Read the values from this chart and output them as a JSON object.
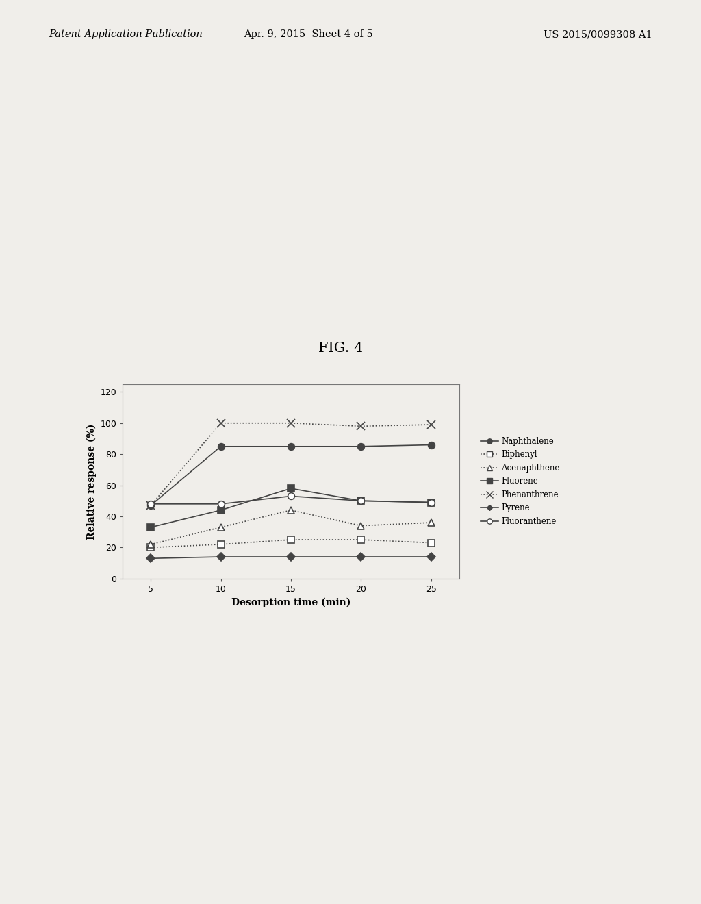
{
  "title": "FIG. 4",
  "xlabel": "Desorption time (min)",
  "ylabel": "Relative response (%)",
  "x": [
    5,
    10,
    15,
    20,
    25
  ],
  "series": [
    {
      "name": "Naphthalene",
      "y": [
        47,
        85,
        85,
        85,
        86
      ],
      "marker": "o",
      "markerfacecolor": "#444444",
      "markeredgecolor": "#444444",
      "linestyle": "-",
      "color": "#444444",
      "markersize": 7,
      "linewidth": 1.2
    },
    {
      "name": "Biphenyl",
      "y": [
        20,
        22,
        25,
        25,
        23
      ],
      "marker": "s",
      "markerfacecolor": "white",
      "markeredgecolor": "#444444",
      "linestyle": ":",
      "color": "#444444",
      "markersize": 7,
      "linewidth": 1.2
    },
    {
      "name": "Acenaphthene",
      "y": [
        22,
        33,
        44,
        34,
        36
      ],
      "marker": "^",
      "markerfacecolor": "white",
      "markeredgecolor": "#444444",
      "linestyle": ":",
      "color": "#444444",
      "markersize": 7,
      "linewidth": 1.2
    },
    {
      "name": "Fluorene",
      "y": [
        33,
        44,
        58,
        50,
        49
      ],
      "marker": "s",
      "markerfacecolor": "#444444",
      "markeredgecolor": "#444444",
      "linestyle": "-",
      "color": "#444444",
      "markersize": 7,
      "linewidth": 1.2
    },
    {
      "name": "Phenanthrene",
      "y": [
        47,
        100,
        100,
        98,
        99
      ],
      "marker": "x",
      "markerfacecolor": "#444444",
      "markeredgecolor": "#444444",
      "linestyle": ":",
      "color": "#444444",
      "markersize": 9,
      "linewidth": 1.2
    },
    {
      "name": "Pyrene",
      "y": [
        13,
        14,
        14,
        14,
        14
      ],
      "marker": "D",
      "markerfacecolor": "#444444",
      "markeredgecolor": "#444444",
      "linestyle": "-",
      "color": "#444444",
      "markersize": 6,
      "linewidth": 1.2
    },
    {
      "name": "Fluoranthene",
      "y": [
        48,
        48,
        53,
        50,
        49
      ],
      "marker": "o",
      "markerfacecolor": "white",
      "markeredgecolor": "#444444",
      "linestyle": "-",
      "color": "#444444",
      "markersize": 7,
      "linewidth": 1.2
    }
  ],
  "xlim": [
    3,
    27
  ],
  "ylim": [
    0,
    125
  ],
  "yticks": [
    0,
    20,
    40,
    60,
    80,
    100,
    120
  ],
  "xticks": [
    5,
    10,
    15,
    20,
    25
  ],
  "header_left": "Patent Application Publication",
  "header_mid": "Apr. 9, 2015  Sheet 4 of 5",
  "header_right": "US 2015/0099308 A1",
  "background_color": "#f0eeea",
  "plot_bg": "#f0eeea"
}
